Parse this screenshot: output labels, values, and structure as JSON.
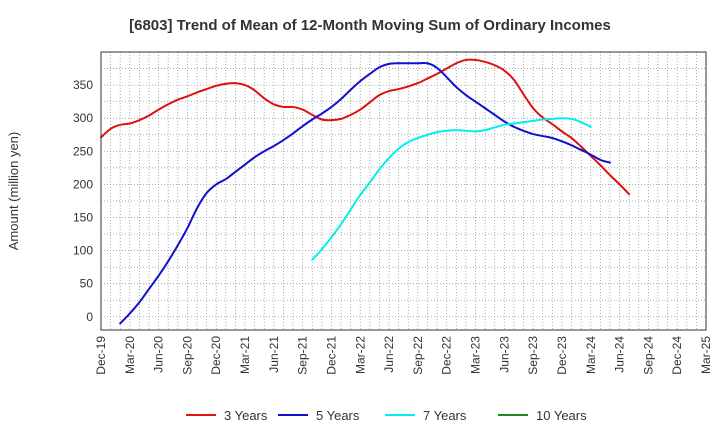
{
  "chart_data": {
    "type": "line",
    "title": "[6803]  Trend of Mean of 12-Month Moving Sum of Ordinary Incomes",
    "ylabel": "Amount (million yen)",
    "xlabel": "",
    "ylim": [
      -20,
      400
    ],
    "yticks": [
      0,
      50,
      100,
      150,
      200,
      250,
      300,
      350
    ],
    "xlim": [
      0,
      63
    ],
    "xticks": [
      {
        "label": "Dec-19",
        "x": 0
      },
      {
        "label": "Mar-20",
        "x": 3
      },
      {
        "label": "Jun-20",
        "x": 6
      },
      {
        "label": "Sep-20",
        "x": 9
      },
      {
        "label": "Dec-20",
        "x": 12
      },
      {
        "label": "Mar-21",
        "x": 15
      },
      {
        "label": "Jun-21",
        "x": 18
      },
      {
        "label": "Sep-21",
        "x": 21
      },
      {
        "label": "Dec-21",
        "x": 24
      },
      {
        "label": "Mar-22",
        "x": 27
      },
      {
        "label": "Jun-22",
        "x": 30
      },
      {
        "label": "Sep-22",
        "x": 33
      },
      {
        "label": "Dec-22",
        "x": 36
      },
      {
        "label": "Mar-23",
        "x": 39
      },
      {
        "label": "Jun-23",
        "x": 42
      },
      {
        "label": "Sep-23",
        "x": 45
      },
      {
        "label": "Dec-23",
        "x": 48
      },
      {
        "label": "Mar-24",
        "x": 51
      },
      {
        "label": "Jun-24",
        "x": 54
      },
      {
        "label": "Sep-24",
        "x": 57
      },
      {
        "label": "Dec-24",
        "x": 60
      },
      {
        "label": "Mar-25",
        "x": 63
      }
    ],
    "grid": true,
    "legend_position": "bottom",
    "series": [
      {
        "name": "3 Years",
        "color": "#dd1111",
        "points": [
          [
            0,
            271
          ],
          [
            1,
            284
          ],
          [
            2,
            290
          ],
          [
            3,
            292
          ],
          [
            4,
            297
          ],
          [
            5,
            304
          ],
          [
            6,
            313
          ],
          [
            7,
            321
          ],
          [
            8,
            328
          ],
          [
            9,
            333
          ],
          [
            10,
            339
          ],
          [
            11,
            344
          ],
          [
            12,
            349
          ],
          [
            13,
            352
          ],
          [
            14,
            353
          ],
          [
            15,
            350
          ],
          [
            16,
            342
          ],
          [
            17,
            330
          ],
          [
            18,
            321
          ],
          [
            19,
            317
          ],
          [
            20,
            317
          ],
          [
            21,
            313
          ],
          [
            22,
            305
          ],
          [
            23,
            298
          ],
          [
            24,
            297
          ],
          [
            25,
            299
          ],
          [
            26,
            305
          ],
          [
            27,
            313
          ],
          [
            28,
            324
          ],
          [
            29,
            335
          ],
          [
            30,
            341
          ],
          [
            31,
            344
          ],
          [
            32,
            348
          ],
          [
            33,
            353
          ],
          [
            34,
            360
          ],
          [
            35,
            367
          ],
          [
            36,
            375
          ],
          [
            37,
            383
          ],
          [
            38,
            388
          ],
          [
            39,
            388
          ],
          [
            40,
            385
          ],
          [
            41,
            380
          ],
          [
            42,
            372
          ],
          [
            43,
            358
          ],
          [
            44,
            336
          ],
          [
            45,
            315
          ],
          [
            46,
            301
          ],
          [
            47,
            291
          ],
          [
            48,
            280
          ],
          [
            49,
            270
          ],
          [
            50,
            257
          ],
          [
            51,
            243
          ],
          [
            52,
            229
          ],
          [
            53,
            214
          ],
          [
            54,
            200
          ],
          [
            55,
            185
          ]
        ]
      },
      {
        "name": "5 Years",
        "color": "#1111cc",
        "points": [
          [
            2,
            -10
          ],
          [
            3,
            5
          ],
          [
            4,
            22
          ],
          [
            5,
            42
          ],
          [
            6,
            62
          ],
          [
            7,
            84
          ],
          [
            8,
            108
          ],
          [
            9,
            134
          ],
          [
            10,
            164
          ],
          [
            11,
            187
          ],
          [
            12,
            200
          ],
          [
            13,
            208
          ],
          [
            14,
            219
          ],
          [
            15,
            230
          ],
          [
            16,
            241
          ],
          [
            17,
            250
          ],
          [
            18,
            258
          ],
          [
            19,
            267
          ],
          [
            20,
            277
          ],
          [
            21,
            288
          ],
          [
            22,
            298
          ],
          [
            23,
            307
          ],
          [
            24,
            317
          ],
          [
            25,
            329
          ],
          [
            26,
            343
          ],
          [
            27,
            356
          ],
          [
            28,
            367
          ],
          [
            29,
            377
          ],
          [
            30,
            382
          ],
          [
            31,
            383
          ],
          [
            32,
            383
          ],
          [
            33,
            383
          ],
          [
            34,
            383
          ],
          [
            35,
            376
          ],
          [
            36,
            362
          ],
          [
            37,
            347
          ],
          [
            38,
            335
          ],
          [
            39,
            325
          ],
          [
            40,
            315
          ],
          [
            41,
            305
          ],
          [
            42,
            295
          ],
          [
            43,
            287
          ],
          [
            44,
            281
          ],
          [
            45,
            276
          ],
          [
            46,
            273
          ],
          [
            47,
            270
          ],
          [
            48,
            265
          ],
          [
            49,
            259
          ],
          [
            50,
            252
          ],
          [
            51,
            245
          ],
          [
            52,
            237
          ],
          [
            53,
            233
          ]
        ]
      },
      {
        "name": "7 Years",
        "color": "#00eeee",
        "points": [
          [
            22,
            86
          ],
          [
            23,
            102
          ],
          [
            24,
            120
          ],
          [
            25,
            140
          ],
          [
            26,
            162
          ],
          [
            27,
            184
          ],
          [
            28,
            203
          ],
          [
            29,
            223
          ],
          [
            30,
            240
          ],
          [
            31,
            254
          ],
          [
            32,
            264
          ],
          [
            33,
            270
          ],
          [
            34,
            275
          ],
          [
            35,
            279
          ],
          [
            36,
            281
          ],
          [
            37,
            282
          ],
          [
            38,
            281
          ],
          [
            39,
            280
          ],
          [
            40,
            282
          ],
          [
            41,
            286
          ],
          [
            42,
            290
          ],
          [
            43,
            292
          ],
          [
            44,
            294
          ],
          [
            45,
            296
          ],
          [
            46,
            298
          ],
          [
            47,
            299
          ],
          [
            48,
            300
          ],
          [
            49,
            299
          ],
          [
            50,
            294
          ],
          [
            51,
            287
          ]
        ]
      },
      {
        "name": "10 Years",
        "color": "#228822",
        "points": []
      }
    ]
  }
}
